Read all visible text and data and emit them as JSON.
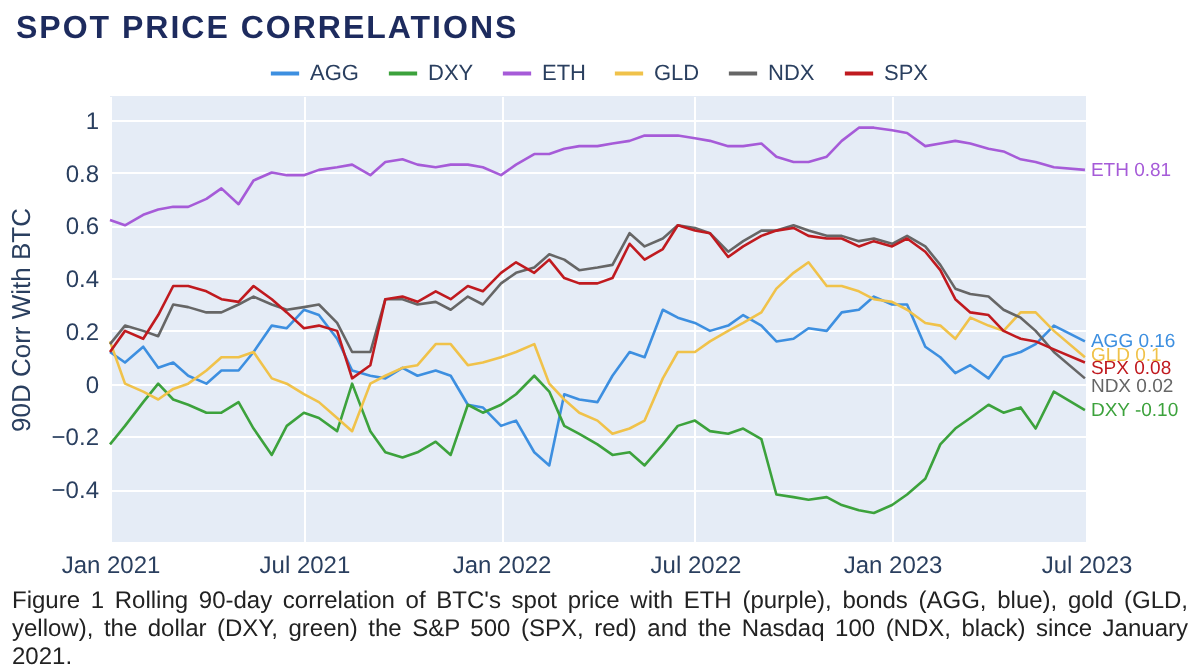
{
  "chart_data": {
    "type": "line",
    "title": "SPOT PRICE CORRELATIONS",
    "ylabel": "90D Corr With BTC",
    "x": [
      "2021-01-01",
      "2021-01-15",
      "2021-02-01",
      "2021-02-15",
      "2021-03-01",
      "2021-03-15",
      "2021-04-01",
      "2021-04-15",
      "2021-05-01",
      "2021-05-15",
      "2021-06-01",
      "2021-06-15",
      "2021-07-01",
      "2021-07-15",
      "2021-08-01",
      "2021-08-15",
      "2021-09-01",
      "2021-09-15",
      "2021-10-01",
      "2021-10-15",
      "2021-11-01",
      "2021-11-15",
      "2021-12-01",
      "2021-12-15",
      "2022-01-01",
      "2022-01-15",
      "2022-02-01",
      "2022-02-15",
      "2022-03-01",
      "2022-03-15",
      "2022-04-01",
      "2022-04-15",
      "2022-05-01",
      "2022-05-15",
      "2022-06-01",
      "2022-06-15",
      "2022-07-01",
      "2022-07-15",
      "2022-08-01",
      "2022-08-15",
      "2022-09-01",
      "2022-09-15",
      "2022-10-01",
      "2022-10-15",
      "2022-11-01",
      "2022-11-15",
      "2022-12-01",
      "2022-12-15",
      "2023-01-01",
      "2023-01-15",
      "2023-02-01",
      "2023-02-15",
      "2023-03-01",
      "2023-03-15",
      "2023-04-01",
      "2023-04-15",
      "2023-05-01",
      "2023-05-15",
      "2023-06-01",
      "2023-06-30"
    ],
    "series": [
      {
        "name": "AGG",
        "color": "#3d8fe0",
        "values": [
          0.12,
          0.08,
          0.14,
          0.06,
          0.08,
          0.03,
          0.0,
          0.05,
          0.05,
          0.12,
          0.22,
          0.21,
          0.28,
          0.26,
          0.17,
          0.05,
          0.03,
          0.02,
          0.06,
          0.03,
          0.05,
          0.03,
          -0.08,
          -0.09,
          -0.16,
          -0.14,
          -0.26,
          -0.31,
          -0.04,
          -0.06,
          -0.07,
          0.03,
          0.12,
          0.1,
          0.28,
          0.25,
          0.23,
          0.2,
          0.22,
          0.26,
          0.22,
          0.16,
          0.17,
          0.21,
          0.2,
          0.27,
          0.28,
          0.33,
          0.3,
          0.3,
          0.14,
          0.1,
          0.04,
          0.07,
          0.02,
          0.1,
          0.12,
          0.15,
          0.22,
          0.16
        ]
      },
      {
        "name": "DXY",
        "color": "#3ca23c",
        "values": [
          -0.23,
          -0.16,
          -0.07,
          0.0,
          -0.06,
          -0.08,
          -0.11,
          -0.11,
          -0.07,
          -0.17,
          -0.27,
          -0.16,
          -0.11,
          -0.13,
          -0.18,
          0.0,
          -0.18,
          -0.26,
          -0.28,
          -0.26,
          -0.22,
          -0.27,
          -0.08,
          -0.11,
          -0.08,
          -0.04,
          0.03,
          -0.03,
          -0.16,
          -0.19,
          -0.23,
          -0.27,
          -0.26,
          -0.31,
          -0.23,
          -0.16,
          -0.14,
          -0.18,
          -0.19,
          -0.17,
          -0.21,
          -0.42,
          -0.43,
          -0.44,
          -0.43,
          -0.46,
          -0.48,
          -0.49,
          -0.46,
          -0.42,
          -0.36,
          -0.23,
          -0.17,
          -0.13,
          -0.08,
          -0.11,
          -0.09,
          -0.17,
          -0.03,
          -0.1
        ]
      },
      {
        "name": "ETH",
        "color": "#a65bd8",
        "values": [
          0.62,
          0.6,
          0.64,
          0.66,
          0.67,
          0.67,
          0.7,
          0.74,
          0.68,
          0.77,
          0.8,
          0.79,
          0.79,
          0.81,
          0.82,
          0.83,
          0.79,
          0.84,
          0.85,
          0.83,
          0.82,
          0.83,
          0.83,
          0.82,
          0.79,
          0.83,
          0.87,
          0.87,
          0.89,
          0.9,
          0.9,
          0.91,
          0.92,
          0.94,
          0.94,
          0.94,
          0.93,
          0.92,
          0.9,
          0.9,
          0.91,
          0.86,
          0.84,
          0.84,
          0.86,
          0.92,
          0.97,
          0.97,
          0.96,
          0.95,
          0.9,
          0.91,
          0.92,
          0.91,
          0.89,
          0.88,
          0.85,
          0.84,
          0.82,
          0.81
        ]
      },
      {
        "name": "GLD",
        "color": "#f0c24a",
        "values": [
          0.16,
          0.0,
          -0.03,
          -0.06,
          -0.02,
          0.0,
          0.05,
          0.1,
          0.1,
          0.12,
          0.02,
          0.0,
          -0.04,
          -0.07,
          -0.13,
          -0.18,
          0.0,
          0.03,
          0.06,
          0.07,
          0.15,
          0.15,
          0.07,
          0.08,
          0.1,
          0.12,
          0.15,
          0.0,
          -0.06,
          -0.11,
          -0.14,
          -0.19,
          -0.17,
          -0.14,
          0.02,
          0.12,
          0.12,
          0.16,
          0.2,
          0.23,
          0.27,
          0.36,
          0.42,
          0.46,
          0.37,
          0.37,
          0.35,
          0.32,
          0.31,
          0.28,
          0.23,
          0.22,
          0.17,
          0.25,
          0.22,
          0.2,
          0.27,
          0.27,
          0.2,
          0.1
        ]
      },
      {
        "name": "NDX",
        "color": "#666666",
        "values": [
          0.15,
          0.22,
          0.2,
          0.18,
          0.3,
          0.29,
          0.27,
          0.27,
          0.3,
          0.33,
          0.3,
          0.28,
          0.29,
          0.3,
          0.23,
          0.12,
          0.12,
          0.32,
          0.32,
          0.3,
          0.31,
          0.28,
          0.33,
          0.3,
          0.38,
          0.42,
          0.44,
          0.49,
          0.47,
          0.43,
          0.44,
          0.45,
          0.57,
          0.52,
          0.55,
          0.6,
          0.59,
          0.57,
          0.5,
          0.54,
          0.58,
          0.58,
          0.6,
          0.58,
          0.56,
          0.56,
          0.54,
          0.55,
          0.53,
          0.56,
          0.52,
          0.45,
          0.36,
          0.34,
          0.33,
          0.28,
          0.25,
          0.2,
          0.12,
          0.02
        ]
      },
      {
        "name": "SPX",
        "color": "#c01a1f",
        "values": [
          0.12,
          0.2,
          0.17,
          0.26,
          0.37,
          0.37,
          0.35,
          0.32,
          0.31,
          0.37,
          0.32,
          0.27,
          0.21,
          0.22,
          0.2,
          0.02,
          0.07,
          0.32,
          0.33,
          0.31,
          0.35,
          0.32,
          0.37,
          0.35,
          0.42,
          0.46,
          0.42,
          0.47,
          0.4,
          0.38,
          0.38,
          0.4,
          0.53,
          0.47,
          0.51,
          0.6,
          0.58,
          0.57,
          0.48,
          0.52,
          0.56,
          0.58,
          0.59,
          0.56,
          0.55,
          0.55,
          0.52,
          0.54,
          0.52,
          0.55,
          0.5,
          0.43,
          0.32,
          0.27,
          0.26,
          0.2,
          0.17,
          0.16,
          0.13,
          0.08
        ]
      }
    ],
    "xlim": [
      "2021-01-01",
      "2023-07-01"
    ],
    "xticks": [
      {
        "value": "2021-01-01",
        "label": "Jan 2021"
      },
      {
        "value": "2021-07-01",
        "label": "Jul 2021"
      },
      {
        "value": "2022-01-01",
        "label": "Jan 2022"
      },
      {
        "value": "2022-07-01",
        "label": "Jul 2022"
      },
      {
        "value": "2023-01-01",
        "label": "Jan 2023"
      },
      {
        "value": "2023-07-01",
        "label": "Jul 2023"
      }
    ],
    "ylim": [
      -0.6,
      1.09
    ],
    "yticks": [
      {
        "value": -0.4,
        "label": "−0.4"
      },
      {
        "value": -0.2,
        "label": "−0.2"
      },
      0,
      0.2,
      0.4,
      0.6,
      0.8,
      1
    ],
    "grid": true,
    "legend": "top",
    "annotations": [
      {
        "text": "AGG 0.16",
        "x": "2023-06-30",
        "y": 0.16
      },
      {
        "text": "DXY -0.10",
        "x": "2023-06-30",
        "y": -0.1
      },
      {
        "text": "ETH 0.81",
        "x": "2023-06-30",
        "y": 0.81
      },
      {
        "text": "GLD 0.1",
        "x": "2023-06-30",
        "y": 0.11
      },
      {
        "text": "NDX 0.02",
        "x": "2023-06-30",
        "y": -0.01
      },
      {
        "text": "SPX 0.08",
        "x": "2023-06-30",
        "y": 0.06
      },
      "Figure 1 Rolling 90-day correlation of BTC's spot price with ETH (purple), bonds (AGG, blue), gold (GLD, yellow), the dollar (DXY, green) the S&P 500 (SPX, red) and the Nasdaq 100 (NDX, black) since January 2021."
    ]
  }
}
